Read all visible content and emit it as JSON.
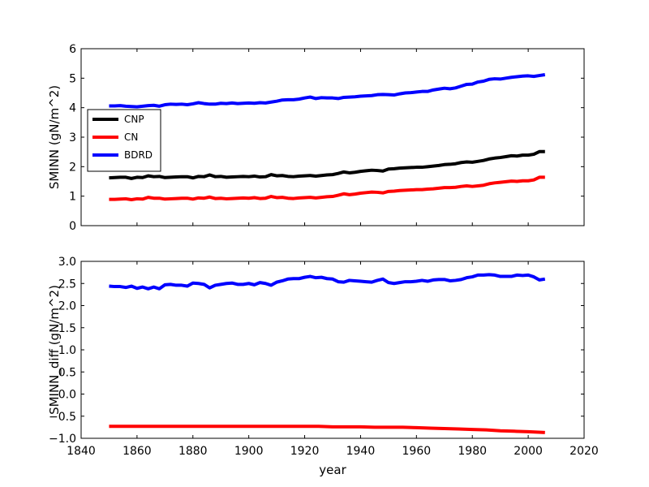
{
  "figure": {
    "xlabel": "year"
  },
  "chart_data": [
    {
      "type": "line",
      "title": "",
      "xlabel": "",
      "ylabel": "SMINN (gN/m^2)",
      "xlim": [
        1840,
        2020
      ],
      "ylim": [
        0,
        6
      ],
      "yticks": [
        0,
        1,
        2,
        3,
        4,
        5,
        6
      ],
      "xticks": [
        1840,
        1860,
        1880,
        1900,
        1920,
        1940,
        1960,
        1980,
        2000,
        2020
      ],
      "show_xtick_labels": false,
      "legend": {
        "placement": "center-left"
      },
      "series": [
        {
          "name": "CNP",
          "color": "#000000",
          "x": [
            1850,
            1852,
            1854,
            1856,
            1858,
            1860,
            1862,
            1864,
            1866,
            1868,
            1870,
            1872,
            1874,
            1876,
            1878,
            1880,
            1882,
            1884,
            1886,
            1888,
            1890,
            1892,
            1894,
            1896,
            1898,
            1900,
            1902,
            1904,
            1906,
            1908,
            1910,
            1912,
            1914,
            1916,
            1918,
            1920,
            1922,
            1924,
            1926,
            1928,
            1930,
            1932,
            1934,
            1936,
            1938,
            1940,
            1942,
            1944,
            1946,
            1948,
            1950,
            1952,
            1954,
            1956,
            1958,
            1960,
            1962,
            1964,
            1966,
            1968,
            1970,
            1972,
            1974,
            1976,
            1978,
            1980,
            1982,
            1984,
            1986,
            1988,
            1990,
            1992,
            1994,
            1996,
            1998,
            2000,
            2002,
            2004,
            2006
          ],
          "y": [
            1.62,
            1.63,
            1.64,
            1.64,
            1.6,
            1.64,
            1.63,
            1.69,
            1.66,
            1.67,
            1.63,
            1.64,
            1.65,
            1.66,
            1.66,
            1.62,
            1.67,
            1.66,
            1.72,
            1.66,
            1.67,
            1.64,
            1.65,
            1.66,
            1.67,
            1.66,
            1.68,
            1.65,
            1.66,
            1.73,
            1.69,
            1.7,
            1.67,
            1.66,
            1.68,
            1.69,
            1.7,
            1.68,
            1.7,
            1.72,
            1.73,
            1.77,
            1.82,
            1.79,
            1.81,
            1.84,
            1.86,
            1.88,
            1.87,
            1.85,
            1.92,
            1.93,
            1.95,
            1.96,
            1.97,
            1.98,
            1.98,
            2.0,
            2.02,
            2.04,
            2.07,
            2.08,
            2.1,
            2.14,
            2.16,
            2.15,
            2.18,
            2.21,
            2.26,
            2.29,
            2.31,
            2.34,
            2.37,
            2.36,
            2.39,
            2.39,
            2.42,
            2.51,
            2.51
          ]
        },
        {
          "name": "CN",
          "color": "#ff0000",
          "x": [
            1850,
            1852,
            1854,
            1856,
            1858,
            1860,
            1862,
            1864,
            1866,
            1868,
            1870,
            1872,
            1874,
            1876,
            1878,
            1880,
            1882,
            1884,
            1886,
            1888,
            1890,
            1892,
            1894,
            1896,
            1898,
            1900,
            1902,
            1904,
            1906,
            1908,
            1910,
            1912,
            1914,
            1916,
            1918,
            1920,
            1922,
            1924,
            1926,
            1928,
            1930,
            1932,
            1934,
            1936,
            1938,
            1940,
            1942,
            1944,
            1946,
            1948,
            1950,
            1952,
            1954,
            1956,
            1958,
            1960,
            1962,
            1964,
            1966,
            1968,
            1970,
            1972,
            1974,
            1976,
            1978,
            1980,
            1982,
            1984,
            1986,
            1988,
            1990,
            1992,
            1994,
            1996,
            1998,
            2000,
            2002,
            2004,
            2006
          ],
          "y": [
            0.89,
            0.89,
            0.9,
            0.91,
            0.88,
            0.91,
            0.9,
            0.96,
            0.93,
            0.93,
            0.9,
            0.91,
            0.92,
            0.93,
            0.93,
            0.9,
            0.94,
            0.93,
            0.97,
            0.92,
            0.93,
            0.91,
            0.92,
            0.93,
            0.94,
            0.93,
            0.95,
            0.92,
            0.93,
            0.99,
            0.95,
            0.96,
            0.93,
            0.92,
            0.94,
            0.95,
            0.96,
            0.94,
            0.96,
            0.98,
            0.99,
            1.03,
            1.08,
            1.05,
            1.07,
            1.1,
            1.12,
            1.14,
            1.13,
            1.11,
            1.16,
            1.17,
            1.19,
            1.2,
            1.21,
            1.22,
            1.22,
            1.24,
            1.25,
            1.27,
            1.29,
            1.29,
            1.3,
            1.33,
            1.35,
            1.33,
            1.35,
            1.37,
            1.42,
            1.45,
            1.47,
            1.49,
            1.51,
            1.5,
            1.52,
            1.52,
            1.55,
            1.64,
            1.64
          ]
        },
        {
          "name": "BDRD",
          "color": "#0000ff",
          "x": [
            1850,
            1852,
            1854,
            1856,
            1858,
            1860,
            1862,
            1864,
            1866,
            1868,
            1870,
            1872,
            1874,
            1876,
            1878,
            1880,
            1882,
            1884,
            1886,
            1888,
            1890,
            1892,
            1894,
            1896,
            1898,
            1900,
            1902,
            1904,
            1906,
            1908,
            1910,
            1912,
            1914,
            1916,
            1918,
            1920,
            1922,
            1924,
            1926,
            1928,
            1930,
            1932,
            1934,
            1936,
            1938,
            1940,
            1942,
            1944,
            1946,
            1948,
            1950,
            1952,
            1954,
            1956,
            1958,
            1960,
            1962,
            1964,
            1966,
            1968,
            1970,
            1972,
            1974,
            1976,
            1978,
            1980,
            1982,
            1984,
            1986,
            1988,
            1990,
            1992,
            1994,
            1996,
            1998,
            2000,
            2002,
            2004,
            2006
          ],
          "y": [
            4.06,
            4.06,
            4.07,
            4.05,
            4.04,
            4.03,
            4.05,
            4.07,
            4.08,
            4.05,
            4.1,
            4.12,
            4.11,
            4.12,
            4.1,
            4.13,
            4.17,
            4.14,
            4.12,
            4.12,
            4.15,
            4.14,
            4.16,
            4.14,
            4.15,
            4.16,
            4.15,
            4.17,
            4.16,
            4.19,
            4.22,
            4.26,
            4.27,
            4.27,
            4.29,
            4.33,
            4.36,
            4.31,
            4.34,
            4.33,
            4.33,
            4.31,
            4.35,
            4.36,
            4.37,
            4.39,
            4.4,
            4.41,
            4.44,
            4.45,
            4.44,
            4.43,
            4.47,
            4.5,
            4.51,
            4.53,
            4.55,
            4.55,
            4.6,
            4.63,
            4.66,
            4.64,
            4.67,
            4.73,
            4.79,
            4.8,
            4.87,
            4.9,
            4.96,
            4.98,
            4.97,
            5.0,
            5.03,
            5.05,
            5.07,
            5.08,
            5.06,
            5.09,
            5.12
          ]
        }
      ]
    },
    {
      "type": "line",
      "title": "",
      "xlabel": "year",
      "ylabel": "SMINN_diff (gN/m^2)",
      "xlim": [
        1840,
        2020
      ],
      "ylim": [
        -1.0,
        3.0
      ],
      "yticks": [
        -1.0,
        -0.5,
        0.0,
        0.5,
        1.0,
        1.5,
        2.0,
        2.5,
        3.0
      ],
      "ytick_labels": [
        "−1.0",
        "−0.5",
        "0.0",
        "0.5",
        "1.0",
        "1.5",
        "2.0",
        "2.5",
        "3.0"
      ],
      "xticks": [
        1840,
        1860,
        1880,
        1900,
        1920,
        1940,
        1960,
        1980,
        2000,
        2020
      ],
      "xtick_labels": [
        "1840",
        "1860",
        "1880",
        "1900",
        "1920",
        "1940",
        "1960",
        "1980",
        "2000",
        "2020"
      ],
      "show_xtick_labels": true,
      "series": [
        {
          "color": "#ff0000",
          "x": [
            1850,
            1855,
            1860,
            1865,
            1870,
            1875,
            1880,
            1885,
            1890,
            1895,
            1900,
            1905,
            1910,
            1915,
            1920,
            1925,
            1930,
            1935,
            1940,
            1945,
            1950,
            1955,
            1960,
            1965,
            1970,
            1975,
            1980,
            1985,
            1990,
            1995,
            2000,
            2006
          ],
          "y": [
            -0.73,
            -0.73,
            -0.73,
            -0.73,
            -0.73,
            -0.73,
            -0.73,
            -0.73,
            -0.73,
            -0.73,
            -0.73,
            -0.73,
            -0.73,
            -0.73,
            -0.73,
            -0.73,
            -0.74,
            -0.74,
            -0.74,
            -0.75,
            -0.75,
            -0.75,
            -0.76,
            -0.77,
            -0.78,
            -0.79,
            -0.8,
            -0.81,
            -0.83,
            -0.84,
            -0.85,
            -0.87
          ]
        },
        {
          "color": "#0000ff",
          "x": [
            1850,
            1852,
            1854,
            1856,
            1858,
            1860,
            1862,
            1864,
            1866,
            1868,
            1870,
            1872,
            1874,
            1876,
            1878,
            1880,
            1882,
            1884,
            1886,
            1888,
            1890,
            1892,
            1894,
            1896,
            1898,
            1900,
            1902,
            1904,
            1906,
            1908,
            1910,
            1912,
            1914,
            1916,
            1918,
            1920,
            1922,
            1924,
            1926,
            1928,
            1930,
            1932,
            1934,
            1936,
            1938,
            1940,
            1942,
            1944,
            1946,
            1948,
            1950,
            1952,
            1954,
            1956,
            1958,
            1960,
            1962,
            1964,
            1966,
            1968,
            1970,
            1972,
            1974,
            1976,
            1978,
            1980,
            1982,
            1984,
            1986,
            1988,
            1990,
            1992,
            1994,
            1996,
            1998,
            2000,
            2002,
            2004,
            2006
          ],
          "y": [
            2.44,
            2.43,
            2.43,
            2.41,
            2.44,
            2.39,
            2.42,
            2.38,
            2.42,
            2.38,
            2.47,
            2.48,
            2.46,
            2.46,
            2.44,
            2.51,
            2.5,
            2.48,
            2.4,
            2.46,
            2.48,
            2.5,
            2.51,
            2.48,
            2.48,
            2.5,
            2.47,
            2.52,
            2.5,
            2.46,
            2.53,
            2.56,
            2.6,
            2.61,
            2.61,
            2.64,
            2.66,
            2.63,
            2.64,
            2.61,
            2.6,
            2.54,
            2.53,
            2.57,
            2.56,
            2.55,
            2.54,
            2.53,
            2.57,
            2.6,
            2.52,
            2.5,
            2.52,
            2.54,
            2.54,
            2.55,
            2.57,
            2.55,
            2.58,
            2.59,
            2.59,
            2.56,
            2.57,
            2.59,
            2.63,
            2.65,
            2.69,
            2.69,
            2.7,
            2.69,
            2.66,
            2.66,
            2.66,
            2.69,
            2.68,
            2.69,
            2.65,
            2.58,
            2.6
          ]
        }
      ]
    }
  ]
}
